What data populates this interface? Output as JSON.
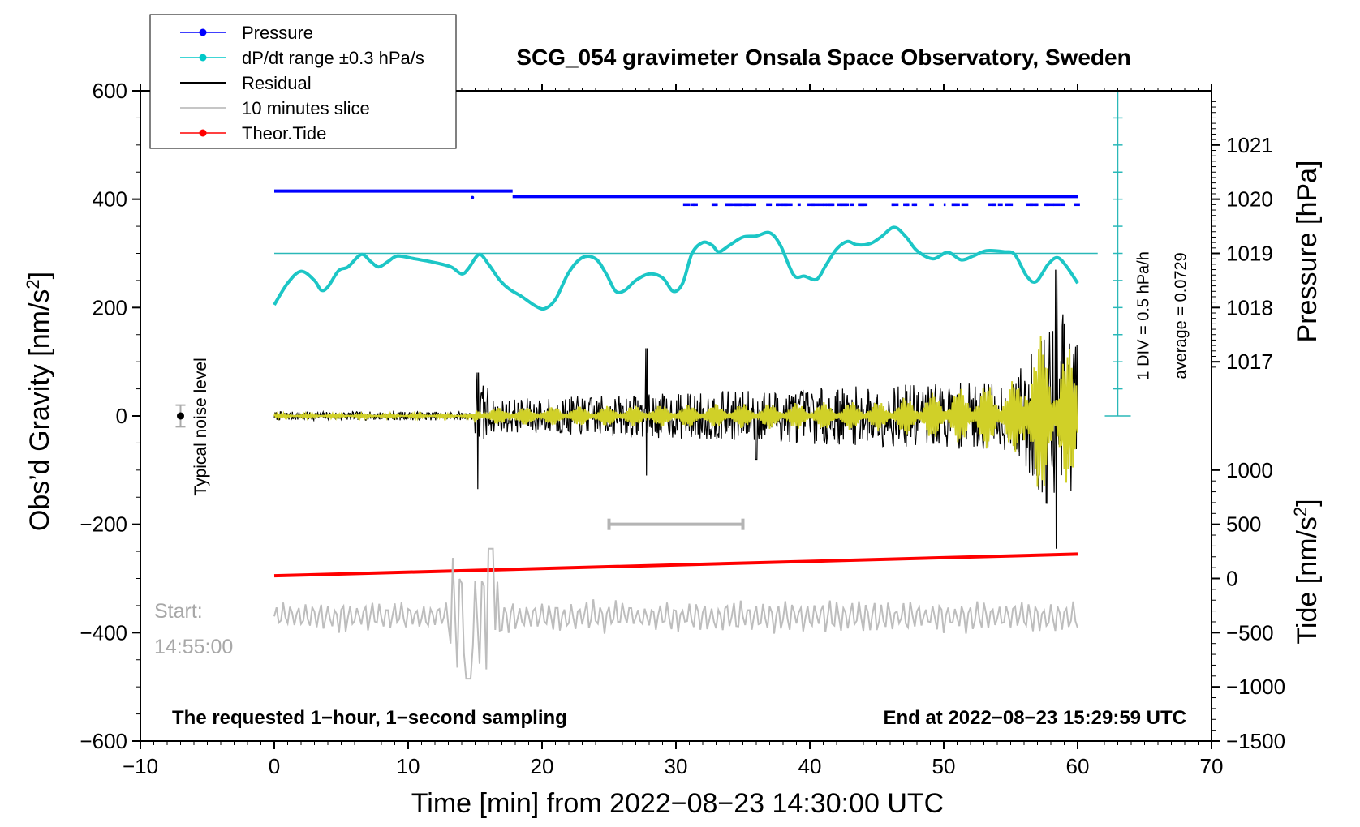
{
  "chart_data": {
    "type": "line",
    "title": "SCG_054 gravimeter Onsala Space Observatory, Sweden",
    "xlabel": "Time [min] from 2022−08−23 14:30:00 UTC",
    "ylabel_left": "Obs’d Gravity [nm/s",
    "ylabel_left_sup": "2",
    "ylabel_left_end": "]",
    "ylabel_right_pressure": "Pressure [hPa]",
    "ylabel_right_tide": "Tide [nm/s",
    "ylabel_right_tide_sup": "2",
    "ylabel_right_tide_end": "]",
    "xlim": [
      -10,
      70
    ],
    "ylim": [
      -600,
      600
    ],
    "x_ticks": [
      {
        "v": -10,
        "label": "−10"
      },
      {
        "v": 0,
        "label": "0"
      },
      {
        "v": 10,
        "label": "10"
      },
      {
        "v": 20,
        "label": "20"
      },
      {
        "v": 30,
        "label": "30"
      },
      {
        "v": 40,
        "label": "40"
      },
      {
        "v": 50,
        "label": "50"
      },
      {
        "v": 60,
        "label": "60"
      },
      {
        "v": 70,
        "label": "70"
      }
    ],
    "y_ticks_left": [
      {
        "v": 600,
        "label": "600"
      },
      {
        "v": 400,
        "label": "400"
      },
      {
        "v": 200,
        "label": "200"
      },
      {
        "v": 0,
        "label": "0"
      },
      {
        "v": -200,
        "label": "−200"
      },
      {
        "v": -400,
        "label": "−400"
      },
      {
        "v": -600,
        "label": "−600"
      }
    ],
    "pressure_axis": {
      "ticks": [
        {
          "hpa": 1021,
          "label": "1021"
        },
        {
          "hpa": 1020,
          "label": "1020"
        },
        {
          "hpa": 1019,
          "label": "1019"
        },
        {
          "hpa": 1018,
          "label": "1018"
        },
        {
          "hpa": 1017,
          "label": "1017"
        }
      ],
      "gravity_per_hpa": 100,
      "ref_hpa": 1019,
      "ref_gravity": 300
    },
    "tide_axis": {
      "ticks": [
        {
          "v": 1000,
          "label": "1000"
        },
        {
          "v": 500,
          "label": "500"
        },
        {
          "v": 0,
          "label": "0"
        },
        {
          "v": -500,
          "label": "−500"
        },
        {
          "v": -1000,
          "label": "−1000"
        },
        {
          "v": -1500,
          "label": "−1500"
        }
      ],
      "gravity_offset": -300,
      "scale": 0.2
    },
    "legend": {
      "position": "top-left",
      "entries": [
        {
          "label": "Pressure",
          "color": "#0000ff",
          "marker": true
        },
        {
          "label": "dP/dt range ±0.3 hPa/s",
          "color": "#00c8c8",
          "marker": true
        },
        {
          "label": "Residual",
          "color": "#000000",
          "marker": false
        },
        {
          "label": "10 minutes slice",
          "color": "#b4b4b4",
          "marker": false
        },
        {
          "label": "Theor.Tide",
          "color": "#ff0000",
          "marker": true
        }
      ]
    },
    "annotations": {
      "left_bottom": "The requested 1−hour, 1−second sampling",
      "right_bottom": "End at 2022−08−23 15:29:59 UTC",
      "start_label": "Start:",
      "start_time": "14:55:00",
      "noise_label": "Typical noise level",
      "div_label": "1 DIV = 0.5 hPa/h",
      "average_label": "average = 0.0729"
    },
    "noise_level": {
      "x": -7,
      "y": 0,
      "err": 20
    },
    "slice_window": {
      "x_start": 25,
      "x_end": 35,
      "y": -200
    },
    "pressure_hpa": [
      {
        "x_start": 0,
        "x_end": 17.8,
        "hpa": 1020.15
      },
      {
        "x_start": 17.8,
        "x_end": 60,
        "hpa": 1020.05
      }
    ],
    "dpdt_curve": [
      [
        0,
        205
      ],
      [
        1,
        245
      ],
      [
        2,
        267
      ],
      [
        3,
        250
      ],
      [
        3.5,
        232
      ],
      [
        4,
        238
      ],
      [
        4.8,
        268
      ],
      [
        5.5,
        275
      ],
      [
        6.5,
        298
      ],
      [
        7.2,
        285
      ],
      [
        7.8,
        275
      ],
      [
        8.5,
        285
      ],
      [
        9.2,
        295
      ],
      [
        10.5,
        290
      ],
      [
        12,
        283
      ],
      [
        13.2,
        275
      ],
      [
        14,
        262
      ],
      [
        14.5,
        272
      ],
      [
        15.3,
        298
      ],
      [
        16,
        280
      ],
      [
        16.8,
        252
      ],
      [
        17.5,
        235
      ],
      [
        18.5,
        220
      ],
      [
        19.5,
        203
      ],
      [
        20.2,
        198
      ],
      [
        21,
        215
      ],
      [
        22,
        265
      ],
      [
        23,
        292
      ],
      [
        24,
        290
      ],
      [
        24.8,
        262
      ],
      [
        25.5,
        230
      ],
      [
        26.2,
        232
      ],
      [
        27,
        250
      ],
      [
        28,
        262
      ],
      [
        29,
        255
      ],
      [
        29.8,
        230
      ],
      [
        30.5,
        245
      ],
      [
        31.2,
        300
      ],
      [
        32,
        320
      ],
      [
        32.7,
        315
      ],
      [
        33.2,
        303
      ],
      [
        34,
        315
      ],
      [
        35,
        330
      ],
      [
        36,
        332
      ],
      [
        37,
        338
      ],
      [
        37.8,
        315
      ],
      [
        38.8,
        260
      ],
      [
        39.6,
        258
      ],
      [
        40.5,
        252
      ],
      [
        41.2,
        278
      ],
      [
        42,
        308
      ],
      [
        42.8,
        322
      ],
      [
        43.5,
        316
      ],
      [
        44.5,
        318
      ],
      [
        45.3,
        330
      ],
      [
        46.3,
        348
      ],
      [
        47.2,
        330
      ],
      [
        48,
        305
      ],
      [
        49.2,
        290
      ],
      [
        50.3,
        302
      ],
      [
        51.3,
        288
      ],
      [
        52.2,
        295
      ],
      [
        53.2,
        305
      ],
      [
        54.5,
        303
      ],
      [
        55.3,
        298
      ],
      [
        56.2,
        258
      ],
      [
        56.9,
        248
      ],
      [
        57.8,
        280
      ],
      [
        58.5,
        292
      ],
      [
        59.2,
        275
      ],
      [
        60,
        245
      ]
    ],
    "dpdt_reference": 300,
    "tide_line": {
      "x": [
        0,
        60
      ],
      "y": [
        -295,
        -255
      ]
    },
    "residual": {
      "x_range": [
        0,
        60
      ],
      "seed": 7,
      "peak_min": 58.4,
      "peak_amp": 270,
      "spike_min": 15.2
    },
    "slice_curve": {
      "y_center": -370,
      "x_range": [
        0,
        60
      ],
      "seed": 11
    }
  }
}
